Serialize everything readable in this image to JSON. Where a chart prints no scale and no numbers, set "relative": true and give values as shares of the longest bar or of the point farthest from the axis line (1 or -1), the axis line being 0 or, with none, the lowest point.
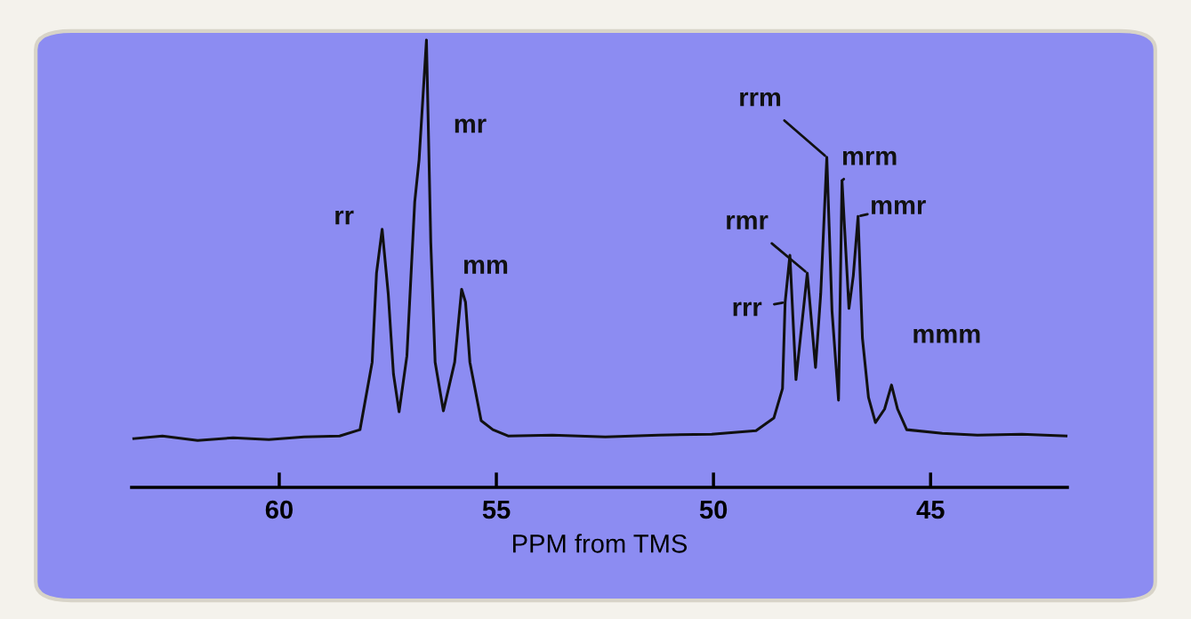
{
  "chart_data": {
    "type": "line",
    "relative": true,
    "xlabel": "PPM from TMS",
    "xlim": [
      63.4,
      41.85
    ],
    "xticks": [
      60,
      55,
      50,
      45
    ],
    "grid": false,
    "marker": "none",
    "line_style": "solid",
    "series": [
      {
        "color": "#111111",
        "x": [
          63.35,
          62.69,
          61.88,
          61.06,
          60.24,
          59.43,
          58.61,
          58.14,
          57.86,
          57.76,
          57.63,
          57.49,
          57.37,
          57.24,
          57.06,
          56.88,
          56.78,
          56.61,
          56.51,
          56.41,
          56.22,
          55.96,
          55.8,
          55.71,
          55.61,
          55.35,
          55.08,
          54.73,
          53.71,
          52.49,
          51.27,
          50.04,
          49.02,
          48.61,
          48.41,
          48.35,
          48.24,
          48.1,
          47.84,
          47.65,
          47.53,
          47.39,
          47.27,
          47.12,
          47.04,
          46.88,
          46.78,
          46.67,
          46.57,
          46.43,
          46.27,
          46.06,
          45.9,
          45.76,
          45.55,
          44.73,
          43.92,
          42.9,
          41.88
        ],
        "values": [
          0.109,
          0.115,
          0.105,
          0.111,
          0.107,
          0.113,
          0.115,
          0.129,
          0.28,
          0.479,
          0.577,
          0.433,
          0.254,
          0.169,
          0.294,
          0.638,
          0.732,
          1.0,
          0.547,
          0.28,
          0.171,
          0.28,
          0.443,
          0.414,
          0.28,
          0.149,
          0.129,
          0.115,
          0.117,
          0.113,
          0.117,
          0.119,
          0.127,
          0.155,
          0.221,
          0.414,
          0.519,
          0.241,
          0.479,
          0.268,
          0.433,
          0.738,
          0.394,
          0.195,
          0.686,
          0.4,
          0.473,
          0.606,
          0.334,
          0.201,
          0.145,
          0.175,
          0.229,
          0.175,
          0.129,
          0.121,
          0.117,
          0.119,
          0.115
        ]
      }
    ],
    "annotations": [
      {
        "text": "rr",
        "x": 57.63,
        "y": 0.577
      },
      {
        "text": "mr",
        "x": 56.61,
        "y": 0.8
      },
      {
        "text": "mm",
        "x": 55.8,
        "y": 0.443
      },
      {
        "text": "rrr",
        "x": 48.35,
        "y": 0.414
      },
      {
        "text": "rmr",
        "x": 47.84,
        "y": 0.479
      },
      {
        "text": "rrm",
        "x": 47.39,
        "y": 0.738
      },
      {
        "text": "mrm",
        "x": 47.04,
        "y": 0.686
      },
      {
        "text": "mmr",
        "x": 46.67,
        "y": 0.606
      },
      {
        "text": "mmm",
        "x": 45.9,
        "y": 0.229
      }
    ]
  }
}
